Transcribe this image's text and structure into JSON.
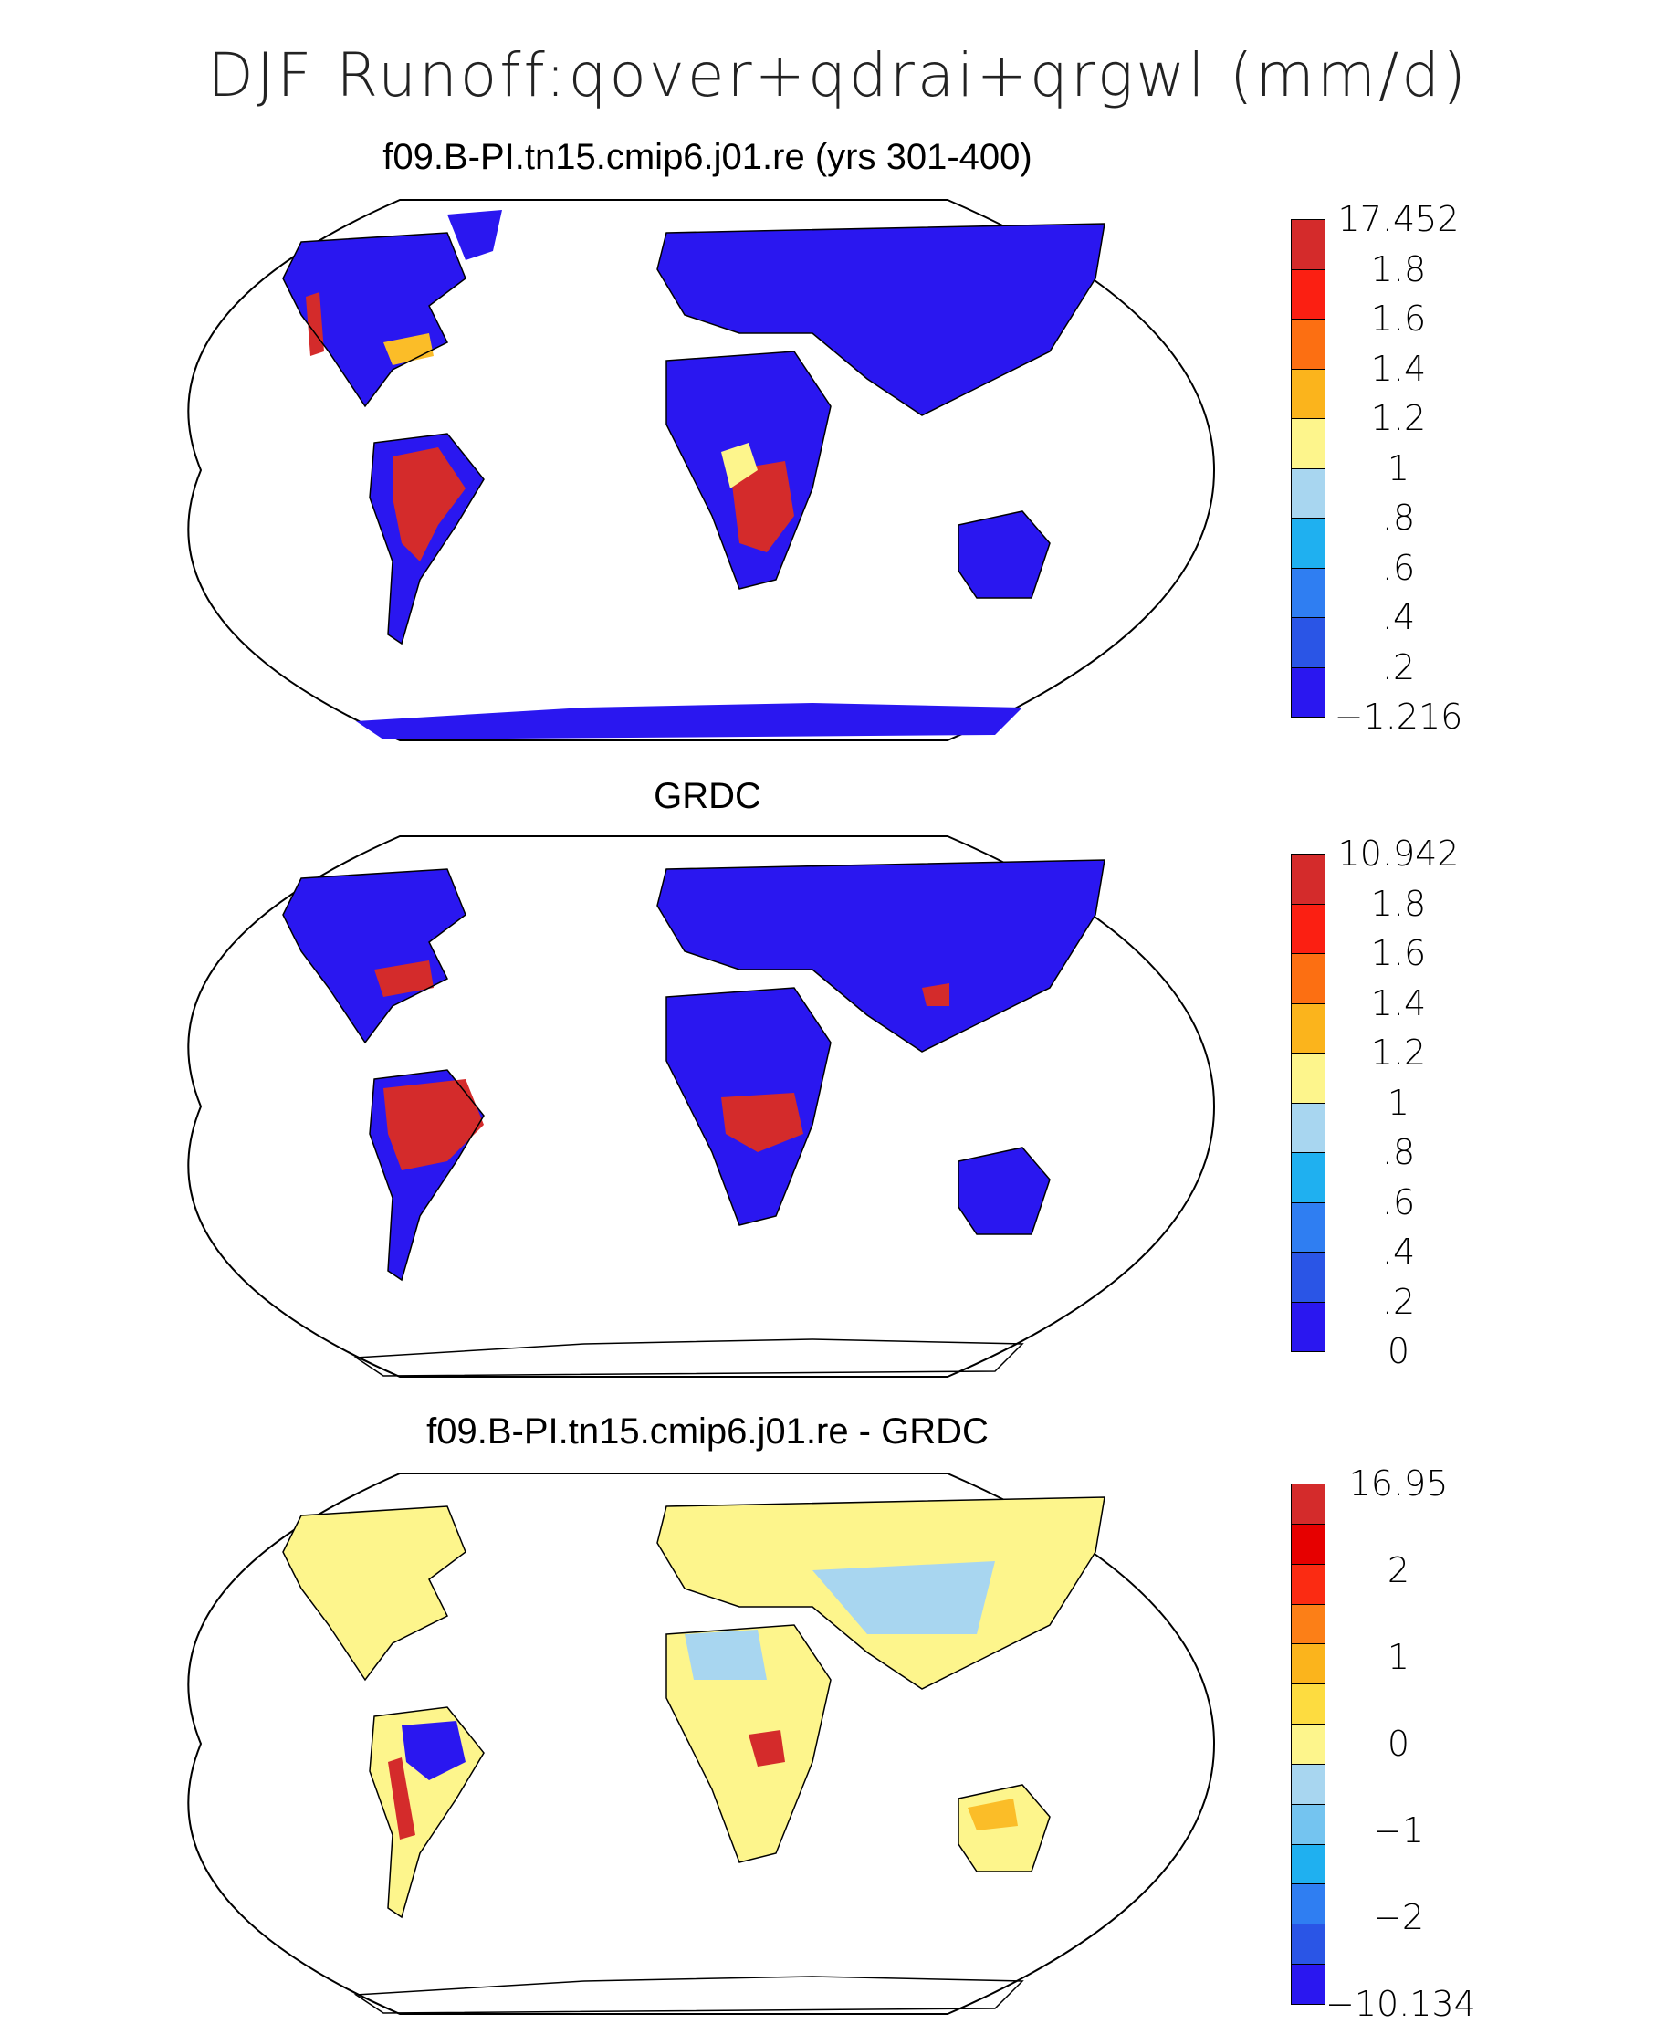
{
  "main_title": "DJF Runoff:qover+qdrai+qrgwl (mm/d)",
  "colors": {
    "palette": [
      "#2a17f0",
      "#2940d8",
      "#2f7ef2",
      "#1fb0f0",
      "#a8d6f0",
      "#fdf58c",
      "#fbbd28",
      "#fc7f17",
      "#fb1f12",
      "#df0000",
      "#d42b2b"
    ]
  },
  "panels": [
    {
      "title": "f09.B-PI.tn15.cmip6.j01.re (yrs 301-400)",
      "colorbar_labels": [
        "17.452",
        "1.8",
        "1.6",
        "1.4",
        "1.2",
        "1",
        ".8",
        ".6",
        ".4",
        ".2",
        "−1.216"
      ],
      "colorbar_colors": [
        "#d42b2b",
        "#fb1f12",
        "#fc6f12",
        "#fbb41c",
        "#fdf58c",
        "#a8d6f0",
        "#1fb0f0",
        "#2f7ef2",
        "#2a55e6",
        "#2a17f0"
      ]
    },
    {
      "title": "GRDC",
      "colorbar_labels": [
        "10.942",
        "1.8",
        "1.6",
        "1.4",
        "1.2",
        "1",
        ".8",
        ".6",
        ".4",
        ".2",
        "0"
      ],
      "colorbar_colors": [
        "#d42b2b",
        "#fb1f12",
        "#fc6f12",
        "#fbb41c",
        "#fdf58c",
        "#a8d6f0",
        "#1fb0f0",
        "#2f7ef2",
        "#2a55e6",
        "#2a17f0"
      ]
    },
    {
      "title": "f09.B-PI.tn15.cmip6.j01.re - GRDC",
      "colorbar_labels": [
        "16.95",
        "2",
        "1",
        "0",
        "−1",
        "−2",
        "−10.134"
      ],
      "colorbar_colors": [
        "#d42b2b",
        "#e60000",
        "#fb2b12",
        "#fc7f17",
        "#fbb41c",
        "#fddc40",
        "#fdf58c",
        "#a8d6f0",
        "#74c4f0",
        "#1fb0f0",
        "#2f7ef2",
        "#2a55e6",
        "#2a17f0"
      ]
    }
  ]
}
